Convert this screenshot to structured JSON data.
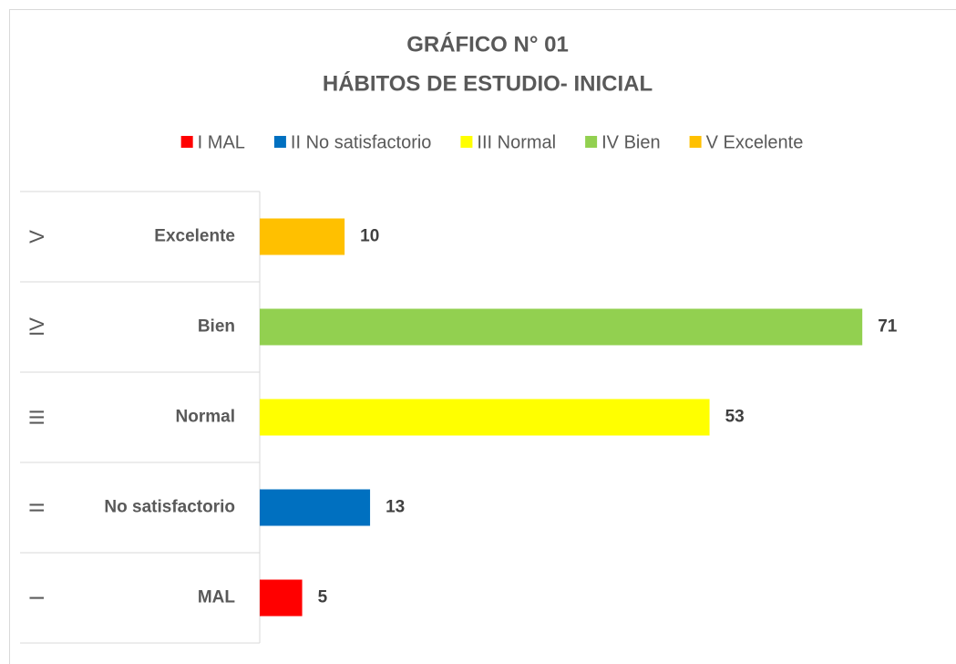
{
  "chart_data": {
    "type": "bar",
    "orientation": "horizontal",
    "title": [
      "GRÁFICO N° 01",
      "HÁBITOS DE ESTUDIO- INICIAL"
    ],
    "categories": [
      "MAL",
      "No satisfactorio",
      "Normal",
      "Bien",
      "Excelente"
    ],
    "groups": [
      "I",
      "II",
      "III",
      "IV",
      "V"
    ],
    "values": [
      5,
      13,
      53,
      71,
      10
    ],
    "colors": [
      "#ff0000",
      "#0070c0",
      "#ffff00",
      "#92d050",
      "#ffc000"
    ],
    "legend": [
      "I MAL",
      "II No satisfactorio",
      "III Normal",
      "IV Bien",
      "V Excelente"
    ],
    "xlim": [
      0,
      80
    ]
  }
}
